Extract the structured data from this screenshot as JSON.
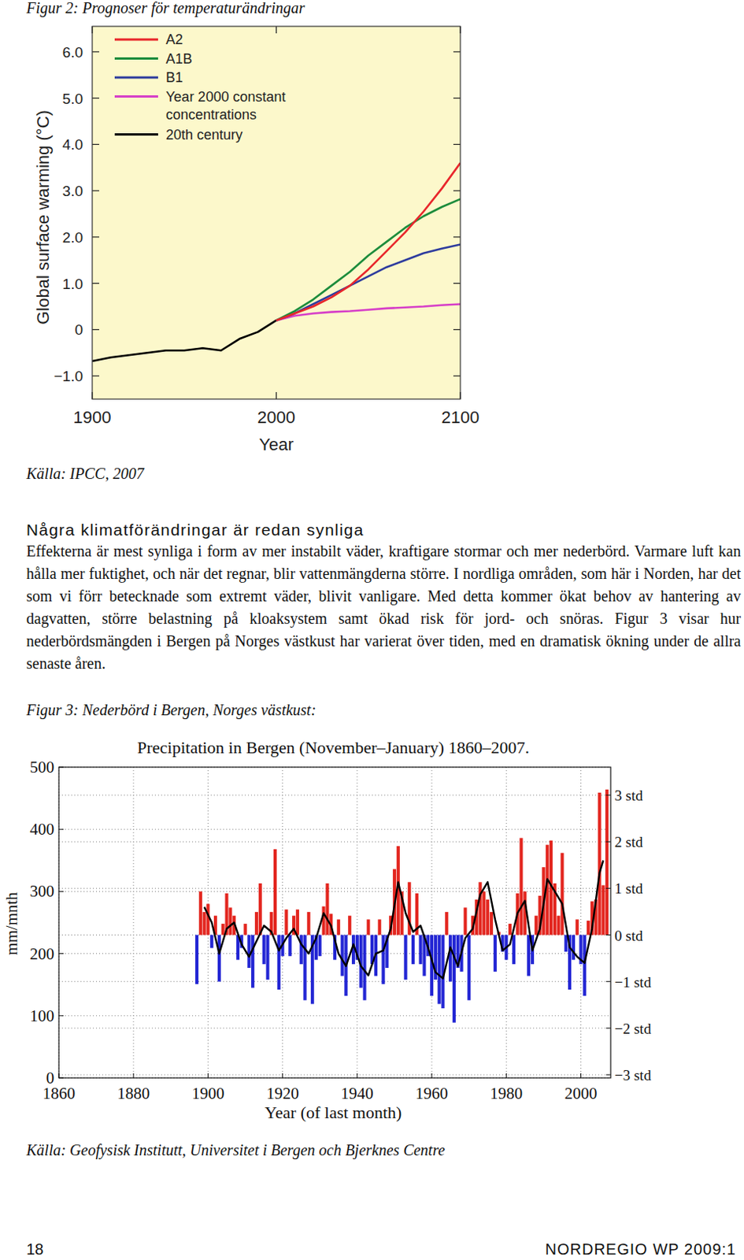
{
  "figure2": {
    "caption": "Figur 2: Prognoser för temperaturändringar",
    "source": "Källa: IPCC, 2007"
  },
  "section": {
    "heading": "Några klimatförändringar är redan synliga",
    "paragraph": "Effekterna är mest synliga i form av mer instabilt väder, kraftigare stormar och mer nederbörd. Varmare luft kan hålla mer fuktighet, och när det regnar, blir vattenmängderna större. I nordliga områden, som här i Norden, har det som vi förr betecknade som extremt väder, blivit vanligare. Med detta kommer ökat behov av hantering av dagvatten, större belastning på kloaksystem samt ökad risk för jord- och snöras. Figur 3 visar hur nederbördsmängden i Bergen på Norges västkust har varierat över tiden, med en dramatisk ökning under de allra senaste åren."
  },
  "figure3": {
    "caption": "Figur 3: Nederbörd i Bergen, Norges västkust:",
    "source": "Källa: Geofysisk Institutt, Universitet i Bergen och Bjerknes Centre"
  },
  "footer": {
    "page": 18,
    "series": "NORDREGIO WP 2009:1"
  },
  "chart_data": [
    {
      "type": "line",
      "x_label": "Year",
      "y_label": "Global surface warming (°C)",
      "x": [
        1900,
        1910,
        1920,
        1930,
        1940,
        1950,
        1960,
        1970,
        1980,
        1990,
        2000,
        2010,
        2020,
        2030,
        2040,
        2050,
        2060,
        2070,
        2080,
        2090,
        2100
      ],
      "xlim": [
        1900,
        2100
      ],
      "xticks": [
        1900,
        2000,
        2100
      ],
      "ylim": [
        -1.5,
        6.55
      ],
      "yticks": [
        {
          "value": -1,
          "label": "−1.0"
        },
        0,
        {
          "value": 1,
          "label": "1.0"
        },
        {
          "value": 2,
          "label": "2.0"
        },
        {
          "value": 3,
          "label": "3.0"
        },
        {
          "value": 4,
          "label": "4.0"
        },
        {
          "value": 5,
          "label": "5.0"
        },
        {
          "value": 6,
          "label": "6.0"
        }
      ],
      "grid": false,
      "legend": "top-left",
      "series": [
        {
          "name": "A2",
          "color": "#e8262b",
          "values": [
            null,
            null,
            null,
            null,
            null,
            null,
            null,
            null,
            null,
            null,
            0.2,
            0.35,
            0.5,
            0.7,
            0.95,
            1.3,
            1.7,
            2.1,
            2.55,
            3.05,
            3.6
          ]
        },
        {
          "name": "A1B",
          "color": "#1c8c3c",
          "values": [
            null,
            null,
            null,
            null,
            null,
            null,
            null,
            null,
            null,
            null,
            0.2,
            0.4,
            0.65,
            0.95,
            1.25,
            1.6,
            1.9,
            2.2,
            2.45,
            2.65,
            2.82
          ]
        },
        {
          "name": "B1",
          "color": "#2e3c9e",
          "values": [
            null,
            null,
            null,
            null,
            null,
            null,
            null,
            null,
            null,
            null,
            0.2,
            0.35,
            0.55,
            0.75,
            0.95,
            1.15,
            1.35,
            1.5,
            1.65,
            1.75,
            1.84
          ]
        },
        {
          "name": "Year 2000 constant concentrations",
          "color": "#d63fc8",
          "values": [
            null,
            null,
            null,
            null,
            null,
            null,
            null,
            null,
            null,
            null,
            0.2,
            0.3,
            0.35,
            0.38,
            0.4,
            0.43,
            0.46,
            0.48,
            0.5,
            0.53,
            0.55
          ]
        },
        {
          "name": "20th century",
          "color": "#000000",
          "values": [
            -0.68,
            -0.6,
            -0.55,
            -0.5,
            -0.45,
            -0.45,
            -0.4,
            -0.45,
            -0.2,
            -0.05,
            0.2,
            null,
            null,
            null,
            null,
            null,
            null,
            null,
            null,
            null,
            null
          ]
        }
      ]
    },
    {
      "type": "bar",
      "title": "Precipitation in Bergen (November–January) 1860–2007.",
      "x_label": "Year (of last month)",
      "y_label": "mm/mnth",
      "x": [
        1897,
        1898,
        1899,
        1900,
        1901,
        1902,
        1903,
        1904,
        1905,
        1906,
        1907,
        1908,
        1909,
        1910,
        1911,
        1912,
        1913,
        1914,
        1915,
        1916,
        1917,
        1918,
        1919,
        1920,
        1921,
        1922,
        1923,
        1924,
        1925,
        1926,
        1927,
        1928,
        1929,
        1930,
        1931,
        1932,
        1933,
        1934,
        1935,
        1936,
        1937,
        1938,
        1939,
        1940,
        1941,
        1942,
        1943,
        1944,
        1945,
        1946,
        1947,
        1948,
        1949,
        1950,
        1951,
        1952,
        1953,
        1954,
        1955,
        1956,
        1957,
        1958,
        1959,
        1960,
        1961,
        1962,
        1963,
        1964,
        1965,
        1966,
        1967,
        1968,
        1969,
        1970,
        1971,
        1972,
        1973,
        1974,
        1975,
        1976,
        1977,
        1978,
        1979,
        1980,
        1981,
        1982,
        1983,
        1984,
        1985,
        1986,
        1987,
        1988,
        1989,
        1990,
        1991,
        1992,
        1993,
        1994,
        1995,
        1996,
        1997,
        1998,
        1999,
        2000,
        2001,
        2002,
        2003,
        2004,
        2005,
        2006,
        2007
      ],
      "xlim": [
        1860,
        2008
      ],
      "xticks": [
        1860,
        1880,
        1900,
        1920,
        1940,
        1960,
        1980,
        2000
      ],
      "ylim": [
        0,
        500
      ],
      "yticks": [
        0,
        100,
        200,
        300,
        400,
        500
      ],
      "y2lim": [
        0,
        500
      ],
      "y2ticks": [
        {
          "value": 5,
          "label": "−3 std"
        },
        {
          "value": 80,
          "label": "−2 std"
        },
        {
          "value": 155,
          "label": "−1 std"
        },
        {
          "value": 230,
          "label": "0 std"
        },
        {
          "value": 305,
          "label": "1 std"
        },
        {
          "value": 380,
          "label": "2 std"
        },
        {
          "value": 455,
          "label": "3 std"
        }
      ],
      "baseline": 230,
      "grid": true,
      "series": [
        {
          "type": "bar",
          "values": [
            151,
            300,
            267,
            280,
            209,
            261,
            155,
            248,
            297,
            274,
            261,
            190,
            209,
            248,
            177,
            145,
            267,
            313,
            183,
            158,
            267,
            368,
            142,
            196,
            271,
            196,
            261,
            271,
            183,
            125,
            267,
            119,
            190,
            196,
            276,
            313,
            264,
            190,
            255,
            164,
            132,
            261,
            183,
            190,
            145,
            125,
            255,
            183,
            164,
            255,
            151,
            177,
            261,
            336,
            373,
            300,
            158,
            315,
            183,
            297,
            183,
            164,
            196,
            132,
            158,
            119,
            112,
            267,
            155,
            89,
            177,
            171,
            274,
            125,
            261,
            287,
            315,
            300,
            287,
            267,
            171,
            235,
            203,
            190,
            248,
            183,
            297,
            386,
            300,
            164,
            183,
            261,
            293,
            339,
            375,
            382,
            313,
            261,
            362,
            203,
            142,
            190,
            255,
            183,
            132,
            253,
            284,
            287,
            459,
            310,
            464
          ],
          "colors": [
            "#2326d4",
            "#e3261f",
            "#e3261f",
            "#e3261f",
            "#2326d4",
            "#e3261f",
            "#2326d4",
            "#e3261f",
            "#e3261f",
            "#e3261f",
            "#e3261f",
            "#2326d4",
            "#2326d4",
            "#e3261f",
            "#2326d4",
            "#2326d4",
            "#e3261f",
            "#e3261f",
            "#2326d4",
            "#2326d4",
            "#e3261f",
            "#e3261f",
            "#2326d4",
            "#2326d4",
            "#e3261f",
            "#2326d4",
            "#e3261f",
            "#e3261f",
            "#2326d4",
            "#2326d4",
            "#e3261f",
            "#2326d4",
            "#2326d4",
            "#2326d4",
            "#e3261f",
            "#e3261f",
            "#e3261f",
            "#2326d4",
            "#e3261f",
            "#2326d4",
            "#2326d4",
            "#e3261f",
            "#2326d4",
            "#2326d4",
            "#2326d4",
            "#2326d4",
            "#e3261f",
            "#2326d4",
            "#2326d4",
            "#e3261f",
            "#2326d4",
            "#2326d4",
            "#e3261f",
            "#e3261f",
            "#e3261f",
            "#e3261f",
            "#2326d4",
            "#e3261f",
            "#2326d4",
            "#e3261f",
            "#2326d4",
            "#2326d4",
            "#2326d4",
            "#2326d4",
            "#2326d4",
            "#2326d4",
            "#2326d4",
            "#e3261f",
            "#2326d4",
            "#2326d4",
            "#2326d4",
            "#2326d4",
            "#e3261f",
            "#2326d4",
            "#e3261f",
            "#e3261f",
            "#e3261f",
            "#e3261f",
            "#e3261f",
            "#e3261f",
            "#2326d4",
            "#e3261f",
            "#2326d4",
            "#2326d4",
            "#e3261f",
            "#2326d4",
            "#e3261f",
            "#e3261f",
            "#e3261f",
            "#2326d4",
            "#2326d4",
            "#e3261f",
            "#e3261f",
            "#e3261f",
            "#e3261f",
            "#e3261f",
            "#e3261f",
            "#e3261f",
            "#e3261f",
            "#2326d4",
            "#2326d4",
            "#2326d4",
            "#e3261f",
            "#2326d4",
            "#2326d4",
            "#e3261f",
            "#e3261f",
            "#e3261f",
            "#e3261f",
            "#e3261f",
            "#e3261f"
          ]
        },
        {
          "type": "line",
          "color": "#000000",
          "x": [
            1899,
            1901,
            1903,
            1905,
            1907,
            1909,
            1911,
            1913,
            1915,
            1917,
            1919,
            1921,
            1923,
            1925,
            1927,
            1929,
            1931,
            1933,
            1935,
            1937,
            1939,
            1941,
            1943,
            1945,
            1947,
            1949,
            1951,
            1953,
            1955,
            1957,
            1959,
            1961,
            1963,
            1965,
            1967,
            1969,
            1971,
            1973,
            1975,
            1977,
            1979,
            1981,
            1983,
            1985,
            1987,
            1989,
            1991,
            1993,
            1995,
            1997,
            1999,
            2001,
            2003,
            2005,
            2006
          ],
          "values": [
            275,
            250,
            200,
            240,
            250,
            215,
            195,
            220,
            245,
            235,
            205,
            225,
            240,
            215,
            200,
            225,
            265,
            245,
            200,
            180,
            215,
            180,
            165,
            200,
            205,
            240,
            315,
            265,
            235,
            245,
            210,
            170,
            160,
            210,
            180,
            225,
            240,
            295,
            315,
            255,
            205,
            215,
            265,
            285,
            205,
            240,
            320,
            300,
            280,
            210,
            195,
            185,
            240,
            330,
            350
          ]
        }
      ]
    }
  ]
}
